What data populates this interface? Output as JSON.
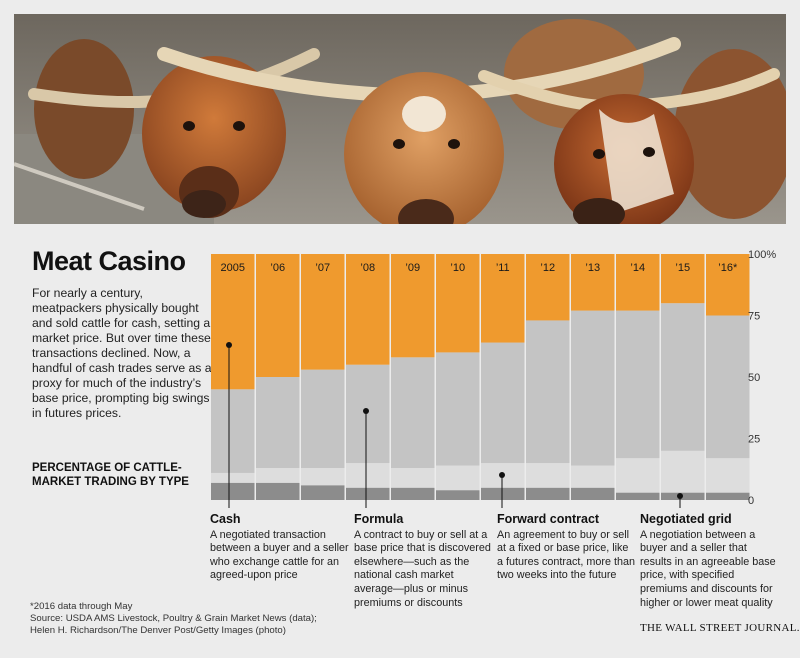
{
  "header": {
    "title": "Meat Casino",
    "intro": "For nearly a century, meatpackers physically bought and sold cattle for cash, setting a market price. But over time these transactions declined. Now, a handful of cash trades serve as a proxy for much of the industry’s base price, prompting big swings in futures prices.",
    "subhead": "PERCENTAGE OF CATTLE-MARKET TRADING BY TYPE"
  },
  "photo": {
    "subject": "longhorn cattle herd"
  },
  "colors": {
    "cash": "#ef9a2e",
    "formula": "#c4c4c4",
    "forward_contract": "#dddddd",
    "negotiated_grid": "#8c8c8c",
    "bar_stroke": "#ffffff"
  },
  "chart_data": {
    "type": "bar",
    "stacked": true,
    "categories": [
      "2005",
      "’06",
      "’07",
      "’08",
      "’09",
      "’10",
      "’11",
      "’12",
      "’13",
      "’14",
      "’15",
      "’16*"
    ],
    "series": [
      {
        "name": "Negotiated grid",
        "values": [
          7,
          7,
          6,
          5,
          5,
          4,
          5,
          5,
          5,
          3,
          3,
          3
        ]
      },
      {
        "name": "Forward contract",
        "values": [
          4,
          6,
          7,
          10,
          8,
          10,
          10,
          10,
          9,
          14,
          17,
          14
        ]
      },
      {
        "name": "Formula",
        "values": [
          34,
          37,
          40,
          40,
          45,
          46,
          49,
          58,
          63,
          60,
          60,
          58
        ]
      },
      {
        "name": "Cash",
        "values": [
          55,
          50,
          47,
          45,
          42,
          40,
          36,
          27,
          23,
          23,
          20,
          25
        ]
      }
    ],
    "yticks": [
      0,
      25,
      50,
      75,
      "100%"
    ],
    "ylim": [
      0,
      100
    ]
  },
  "annotations": [
    {
      "title": "Cash",
      "text": "A negotiated transaction between a buyer and a seller who exchange cattle for an agreed-upon price"
    },
    {
      "title": "Formula",
      "text": "A contract to buy or sell at a base price that is discovered elsewhere—such as the national cash market average—plus or minus premiums or discounts"
    },
    {
      "title": "Forward contract",
      "text": "An agreement to buy or sell at a fixed or base price, like a futures contract, more than two weeks into the future"
    },
    {
      "title": "Negotiated grid",
      "text": "A negotiation between a buyer and a seller that results in an agreeable base price, with specified premiums and discounts for higher or lower meat quality"
    }
  ],
  "footnotes": {
    "note": "*2016 data through May",
    "source": "Source: USDA AMS Livestock, Poultry & Grain Market News (data);",
    "credit": "Helen H. Richardson/The Denver Post/Getty Images (photo)"
  },
  "brand": "THE WALL STREET JOURNAL."
}
